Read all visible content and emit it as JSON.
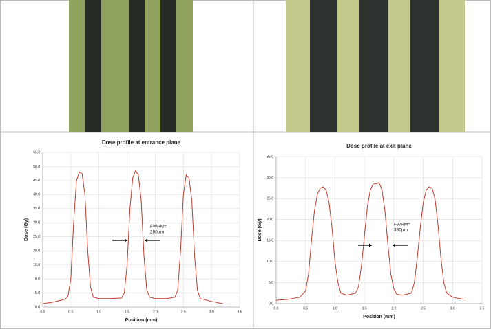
{
  "chart_data": [
    {
      "type": "line",
      "title": "Dose profile at entrance plane",
      "x_label": "Position (mm)",
      "y_label": "Dose (Gy)",
      "annotation": [
        "FWHM=",
        "280µm"
      ],
      "color": "#c0392b",
      "grid": true,
      "x": [
        0.0,
        0.2,
        0.4,
        0.45,
        0.5,
        0.55,
        0.6,
        0.65,
        0.7,
        0.75,
        0.8,
        0.85,
        0.9,
        1.0,
        1.2,
        1.4,
        1.45,
        1.5,
        1.55,
        1.6,
        1.65,
        1.7,
        1.75,
        1.8,
        1.85,
        1.9,
        2.0,
        2.2,
        2.35,
        2.4,
        2.45,
        2.5,
        2.55,
        2.6,
        2.65,
        2.7,
        2.75,
        2.8,
        3.0,
        3.2
      ],
      "values": [
        1.2,
        1.8,
        2.8,
        4,
        10,
        30,
        45,
        48,
        47.5,
        40,
        20,
        7,
        3.5,
        3,
        3,
        3.2,
        5,
        15,
        35,
        46,
        48.5,
        47,
        38,
        18,
        6,
        3.5,
        3,
        3,
        3.5,
        6,
        20,
        40,
        47,
        46,
        38,
        18,
        6,
        3,
        2,
        1.2
      ],
      "xlim": [
        0,
        3.5
      ],
      "xticks": [
        {
          "value": 0,
          "label": "0.0"
        },
        0.5,
        {
          "value": 1,
          "label": "1.0"
        },
        1.5,
        {
          "value": 2,
          "label": "2.0"
        },
        2.5,
        {
          "value": 3,
          "label": "3.0"
        },
        3.5
      ],
      "ylim": [
        0,
        55
      ],
      "yticks": [
        {
          "value": 0,
          "label": "0.0"
        },
        {
          "value": 5,
          "label": "5.0"
        },
        {
          "value": 10,
          "label": "10.0"
        },
        {
          "value": 15,
          "label": "15.0"
        },
        {
          "value": 20,
          "label": "20.0"
        },
        {
          "value": 25,
          "label": "25.0"
        },
        {
          "value": 30,
          "label": "30.0"
        },
        {
          "value": 35,
          "label": "35.0"
        },
        {
          "value": 40,
          "label": "40.0"
        },
        {
          "value": 45,
          "label": "45.0"
        },
        {
          "value": 50,
          "label": "50.0"
        },
        {
          "value": 55,
          "label": "55.0"
        }
      ]
    },
    {
      "type": "line",
      "title": "Dose profile at exit plane",
      "x_label": "Position (mm)",
      "y_label": "Dose (Gy)",
      "annotation": [
        "FWHM=",
        "380µm"
      ],
      "color": "#c0392b",
      "grid": true,
      "x": [
        0.0,
        0.2,
        0.4,
        0.5,
        0.55,
        0.6,
        0.65,
        0.7,
        0.75,
        0.8,
        0.85,
        0.9,
        0.95,
        1.0,
        1.05,
        1.1,
        1.2,
        1.35,
        1.4,
        1.45,
        1.5,
        1.55,
        1.6,
        1.65,
        1.7,
        1.75,
        1.8,
        1.85,
        1.9,
        1.95,
        2.0,
        2.05,
        2.15,
        2.3,
        2.35,
        2.4,
        2.45,
        2.5,
        2.55,
        2.6,
        2.65,
        2.7,
        2.75,
        2.8,
        2.85,
        2.9,
        3.0,
        3.2
      ],
      "values": [
        0.8,
        1.0,
        1.5,
        3,
        7,
        15,
        22,
        26,
        27.5,
        27.8,
        27,
        24,
        18,
        10,
        5,
        2.5,
        2,
        2.5,
        4,
        9,
        16,
        23,
        27,
        28.5,
        28.5,
        28.8,
        27,
        22,
        14,
        7,
        3.5,
        2.2,
        2,
        2.5,
        5,
        11,
        18,
        24,
        27,
        27.8,
        27.5,
        25,
        19,
        11,
        5,
        2.5,
        1.5,
        1.0
      ],
      "xlim": [
        0,
        3.5
      ],
      "xticks": [
        {
          "value": 0,
          "label": "0.0"
        },
        0.5,
        {
          "value": 1,
          "label": "1.0"
        },
        1.5,
        {
          "value": 2,
          "label": "2.0"
        },
        2.5,
        {
          "value": 3,
          "label": "3.0"
        },
        3.5
      ],
      "ylim": [
        0,
        35
      ],
      "yticks": [
        {
          "value": 0,
          "label": "0.0"
        },
        {
          "value": 5,
          "label": "5.0"
        },
        {
          "value": 10,
          "label": "10.0"
        },
        {
          "value": 15,
          "label": "15.0"
        },
        {
          "value": 20,
          "label": "20.0"
        },
        {
          "value": 25,
          "label": "25.0"
        },
        {
          "value": 30,
          "label": "30.0"
        },
        {
          "value": 35,
          "label": "35.0"
        }
      ]
    }
  ]
}
